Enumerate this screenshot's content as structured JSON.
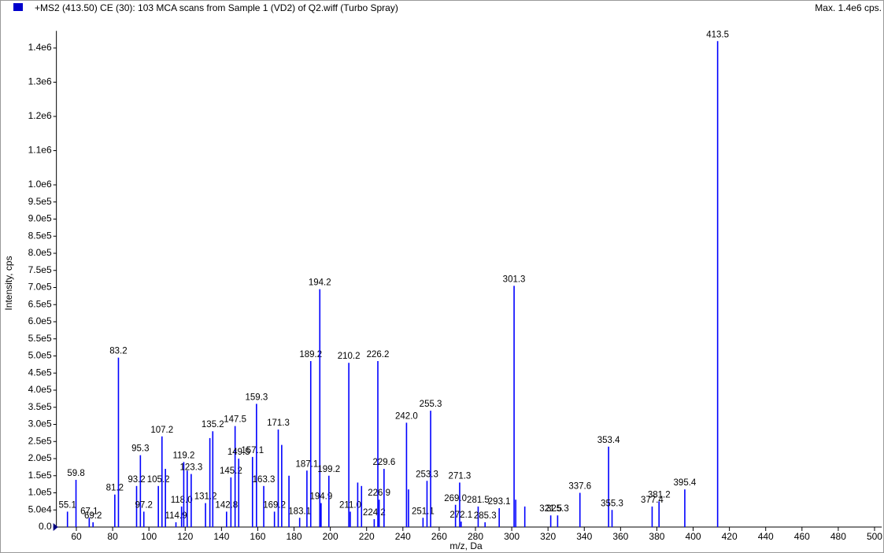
{
  "chart_data": {
    "type": "spectrum",
    "title": "+MS2 (413.50) CE (30): 103 MCA scans from Sample 1 (VD2) of Q2.wiff (Turbo Spray)",
    "max_label": "Max. 1.4e6 cps.",
    "x_label": "m/z, Da",
    "y_label": "Intensity, cps",
    "color": "#0000ff",
    "xlim": [
      49,
      504
    ],
    "ylim": [
      0,
      1450000
    ],
    "xticks": [
      60,
      80,
      100,
      120,
      140,
      160,
      180,
      200,
      220,
      240,
      260,
      280,
      300,
      320,
      340,
      360,
      380,
      400,
      420,
      440,
      460,
      480,
      500
    ],
    "yticks": [
      {
        "value": 0,
        "label": "0.0"
      },
      {
        "value": 50000,
        "label": "5.0e4"
      },
      {
        "value": 100000,
        "label": "1.0e5"
      },
      {
        "value": 150000,
        "label": "1.5e5"
      },
      {
        "value": 200000,
        "label": "2.0e5"
      },
      {
        "value": 250000,
        "label": "2.5e5"
      },
      {
        "value": 300000,
        "label": "3.0e5"
      },
      {
        "value": 350000,
        "label": "3.5e5"
      },
      {
        "value": 400000,
        "label": "4.0e5"
      },
      {
        "value": 450000,
        "label": "4.5e5"
      },
      {
        "value": 500000,
        "label": "5.0e5"
      },
      {
        "value": 550000,
        "label": "5.5e5"
      },
      {
        "value": 600000,
        "label": "6.0e5"
      },
      {
        "value": 650000,
        "label": "6.5e5"
      },
      {
        "value": 700000,
        "label": "7.0e5"
      },
      {
        "value": 750000,
        "label": "7.5e5"
      },
      {
        "value": 800000,
        "label": "8.0e5"
      },
      {
        "value": 850000,
        "label": "8.5e5"
      },
      {
        "value": 900000,
        "label": "9.0e5"
      },
      {
        "value": 950000,
        "label": "9.5e5"
      },
      {
        "value": 1000000,
        "label": "1.0e6"
      },
      {
        "value": 1100000,
        "label": "1.1e6"
      },
      {
        "value": 1200000,
        "label": "1.2e6"
      },
      {
        "value": 1300000,
        "label": "1.3e6"
      },
      {
        "value": 1400000,
        "label": "1.4e6"
      }
    ],
    "x": [
      55.1,
      59.8,
      67.1,
      69.2,
      81.2,
      83.2,
      93.2,
      95.3,
      97.2,
      105.2,
      107.2,
      114.9,
      118.0,
      119.2,
      123.3,
      131.2,
      133.6,
      135.2,
      142.8,
      145.2,
      147.5,
      149.5,
      157.1,
      159.3,
      163.3,
      169.2,
      171.3,
      173.2,
      183.1,
      187.1,
      189.2,
      194.2,
      194.9,
      199.2,
      210.2,
      211.0,
      224.2,
      226.2,
      226.9,
      229.6,
      242.0,
      251.1,
      253.3,
      255.3,
      269.0,
      271.3,
      272.1,
      281.5,
      285.3,
      293.1,
      301.3,
      321.5,
      325.3,
      337.6,
      353.4,
      355.3,
      377.4,
      381.2,
      395.4,
      413.5,
      109.1,
      121.1,
      177.2,
      215.1,
      217.2,
      243.1,
      302.2,
      307.2
    ],
    "values": [
      45000,
      138000,
      27000,
      14000,
      95000,
      495000,
      120000,
      210000,
      45000,
      120000,
      265000,
      14000,
      60000,
      190000,
      155000,
      70000,
      260000,
      280000,
      45000,
      145000,
      295000,
      200000,
      205000,
      360000,
      120000,
      45000,
      285000,
      240000,
      27000,
      165000,
      485000,
      695000,
      70000,
      150000,
      480000,
      45000,
      23000,
      485000,
      80000,
      170000,
      305000,
      27000,
      135000,
      340000,
      65000,
      130000,
      16000,
      60000,
      14000,
      55000,
      705000,
      34000,
      34000,
      100000,
      235000,
      50000,
      60000,
      75000,
      110000,
      1420000,
      170000,
      165000,
      150000,
      130000,
      120000,
      110000,
      80000,
      60000
    ],
    "labels": [
      "55.1",
      "59.8",
      "67.1",
      "69.2",
      "81.2",
      "83.2",
      "93.2",
      "95.3",
      "97.2",
      "105.2",
      "107.2",
      "114.9",
      "118.0",
      "119.2",
      "123.3",
      "131.2",
      null,
      "135.2",
      "142.8",
      "145.2",
      "147.5",
      "149.5",
      "157.1",
      "159.3",
      "163.3",
      "169.2",
      "171.3",
      null,
      "183.1",
      "187.1",
      "189.2",
      "194.2",
      "194.9",
      "199.2",
      "210.2",
      "211.0",
      "224.2",
      "226.2",
      "226.9",
      "229.6",
      "242.0",
      "251.1",
      "253.3",
      "255.3",
      "269.0",
      "271.3",
      "272.1",
      "281.5",
      "285.3",
      "293.1",
      "301.3",
      "321.5",
      "325.3",
      "337.6",
      "353.4",
      "355.3",
      "377.4",
      "381.2",
      "395.4",
      "413.5",
      null,
      null,
      null,
      null,
      null,
      null,
      null,
      null
    ]
  }
}
